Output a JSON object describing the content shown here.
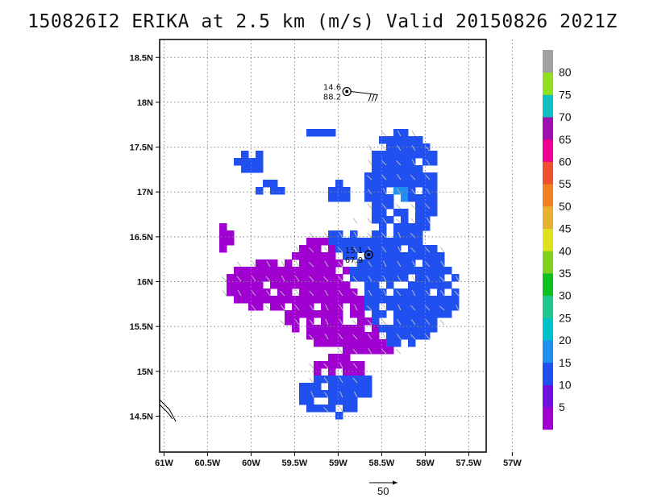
{
  "title": "150826I2 ERIKA at 2.5 km (m/s) Valid 20150826 2021Z",
  "map": {
    "lat_ticks": [
      "18.5N",
      "18N",
      "17.5N",
      "17N",
      "16.5N",
      "16N",
      "15.5N",
      "15N",
      "14.5N"
    ],
    "lon_ticks": [
      "61W",
      "60.5W",
      "60W",
      "59.5W",
      "59W",
      "58.5W",
      "58W",
      "57.5W",
      "57W"
    ],
    "lat_range": [
      14.1,
      18.7
    ],
    "lon_range": [
      -61.05,
      -57.3
    ],
    "grid": "dotted"
  },
  "colorbar": {
    "labels": [
      "5",
      "10",
      "15",
      "20",
      "25",
      "30",
      "35",
      "40",
      "45",
      "50",
      "55",
      "60",
      "65",
      "70",
      "75",
      "80"
    ],
    "colors": [
      "#a000d0",
      "#7010e0",
      "#2050f0",
      "#2090f0",
      "#00c0c8",
      "#20c890",
      "#10c020",
      "#80d020",
      "#e0e020",
      "#e8b030",
      "#f08020",
      "#f05030",
      "#f00090",
      "#a010b0",
      "#10c0c0",
      "#90e020",
      "#a0a0a0"
    ]
  },
  "storm_centers": [
    {
      "lat": 18.12,
      "lon": -58.9,
      "label_top": "14.6",
      "label_bottom": "88.2"
    },
    {
      "lat": 16.3,
      "lon": -58.65,
      "label_top": "15.1",
      "label_bottom": "67.9"
    }
  ],
  "reference_vector": {
    "label": "50"
  }
}
